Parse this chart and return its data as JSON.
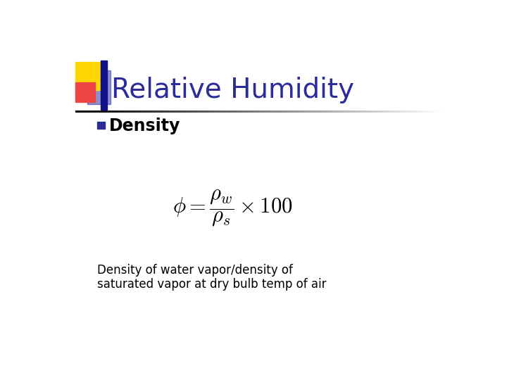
{
  "title": "Relative Humidity",
  "title_color": "#2B2B99",
  "title_fontsize": 28,
  "bullet_text": "Density",
  "bullet_fontsize": 17,
  "formula_latex": "$\\phi = \\dfrac{\\rho_w}{\\rho_s} \\times 100$",
  "formula_fontsize": 22,
  "description_line1": "Density of water vapor/density of",
  "description_line2": "saturated vapor at dry bulb temp of air",
  "description_fontsize": 12,
  "bg_color": "#FFFFFF",
  "text_color": "#000000",
  "bullet_color": "#2B2B99",
  "logo_yellow": "#FFD700",
  "logo_pink": "#EE4444",
  "logo_blue": "#3333AA",
  "logo_darkblue": "#111188"
}
